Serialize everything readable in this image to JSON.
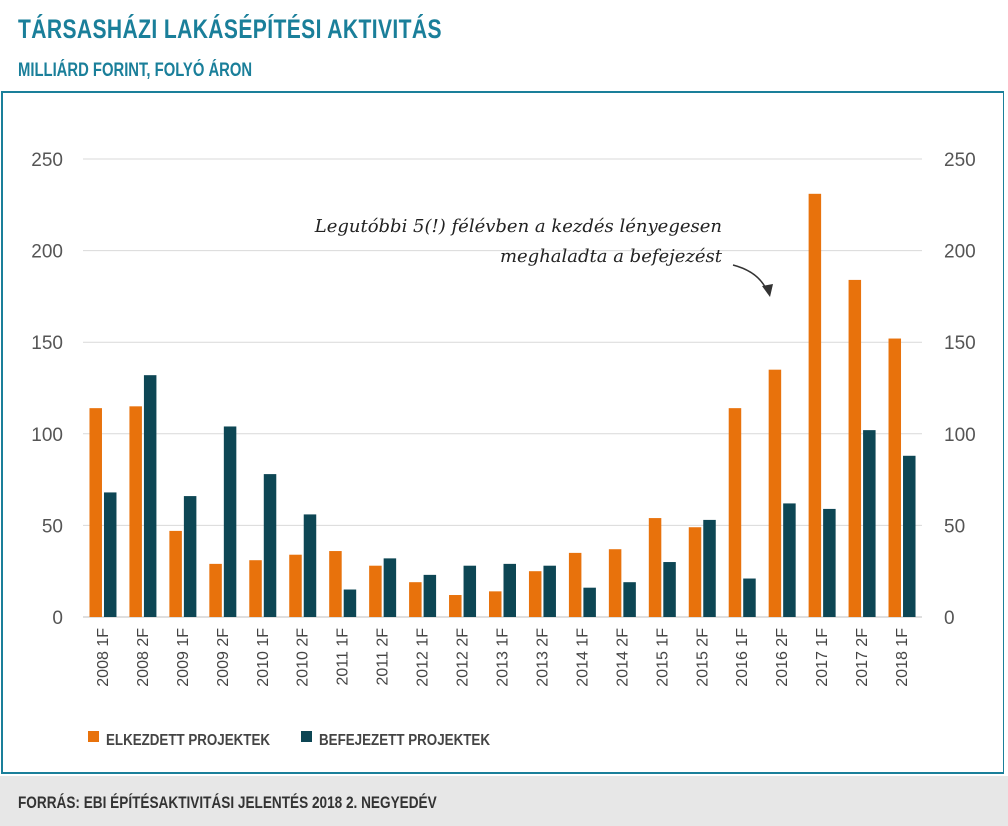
{
  "header": {
    "title": "TÁRSASHÁZI LAKÁSÉPÍTÉSI AKTIVITÁS",
    "subtitle": "MILLIÁRD FORINT, FOLYÓ ÁRON"
  },
  "footer": {
    "source": "FORRÁS: EBI ÉPÍTÉSAKTIVITÁSI JELENTÉS 2018 2. NEGYEDÉV"
  },
  "colors": {
    "accent": "#1a7f9a",
    "series_started": "#e8720c",
    "series_completed": "#0d4654",
    "grid": "#d9d9d9"
  },
  "chart_data": {
    "type": "bar",
    "categories": [
      "2008 1F",
      "2008 2F",
      "2009 1F",
      "2009 2F",
      "2010 1F",
      "2010 2F",
      "2011 1F",
      "2011 2F",
      "2012 1F",
      "2012 2F",
      "2013 1F",
      "2013 2F",
      "2014 1F",
      "2014 2F",
      "2015 1F",
      "2015 2F",
      "2016 1F",
      "2016 2F",
      "2017 1F",
      "2017 2F",
      "2018 1F"
    ],
    "series": [
      {
        "name": "ELKEZDETT PROJEKTEK",
        "color": "#e8720c",
        "values": [
          114,
          115,
          47,
          29,
          31,
          34,
          36,
          28,
          19,
          12,
          14,
          25,
          35,
          37,
          54,
          49,
          114,
          135,
          231,
          184,
          152
        ]
      },
      {
        "name": "BEFEJEZETT PROJEKTEK",
        "color": "#0d4654",
        "values": [
          68,
          132,
          66,
          104,
          78,
          56,
          15,
          32,
          23,
          28,
          29,
          28,
          16,
          19,
          30,
          53,
          21,
          62,
          59,
          102,
          88
        ]
      }
    ],
    "ylim": [
      0,
      250
    ],
    "yticks": [
      0,
      50,
      100,
      150,
      200,
      250
    ],
    "ytick_labels": [
      "0",
      "50",
      "100",
      "150",
      "200",
      "250"
    ],
    "y_axis_right_mirror": true,
    "grid": true,
    "legend_position": "bottom-left",
    "annotation": {
      "lines": [
        "Legutóbbi 5(!) félévben a kezdés lényegesen",
        "meghaladta a befejezést"
      ]
    }
  }
}
